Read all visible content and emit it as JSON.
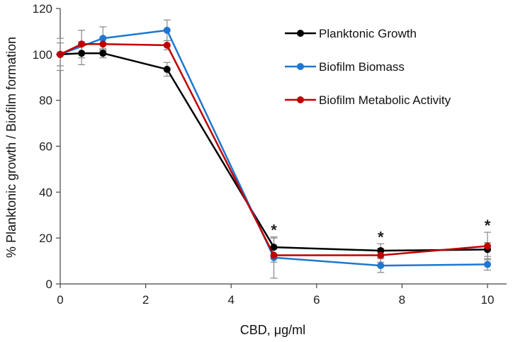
{
  "chart_data": {
    "type": "line",
    "title": "",
    "xlabel": "CBD, μg/ml",
    "ylabel": "% Planktonic growth / Biofilm formation",
    "xlim": [
      0,
      10.5
    ],
    "ylim": [
      0,
      120
    ],
    "xticks": [
      0,
      2,
      4,
      6,
      8,
      10
    ],
    "yticks": [
      0,
      20,
      40,
      60,
      80,
      100,
      120
    ],
    "grid": false,
    "legend_position": "top-right",
    "significance_marker": "*",
    "significance_x": [
      5,
      7.5,
      10
    ],
    "series": [
      {
        "name": "Planktonic Growth",
        "color": "#000000",
        "x": [
          0,
          0.5,
          1,
          2.5,
          5,
          7.5,
          10
        ],
        "y": [
          100,
          100.5,
          100.5,
          93.5,
          16,
          14.5,
          15
        ],
        "err": [
          7,
          5,
          2,
          3,
          4,
          3,
          3
        ]
      },
      {
        "name": "Biofilm Biomass",
        "color": "#1f77d0",
        "x": [
          0,
          1,
          2.5,
          5,
          7.5,
          10
        ],
        "y": [
          100,
          107,
          110.5,
          11.5,
          8,
          8.5
        ],
        "err": [
          0,
          5,
          4.5,
          9,
          3,
          2.5
        ]
      },
      {
        "name": "Biofilm Metabolic Activity",
        "color": "#c00000",
        "x": [
          0,
          0.5,
          1,
          2.5,
          5,
          7.5,
          10
        ],
        "y": [
          100,
          104.5,
          104.5,
          104,
          12.5,
          12.5,
          16.5
        ],
        "err": [
          5,
          6,
          3,
          2,
          3,
          3,
          6
        ]
      }
    ]
  }
}
